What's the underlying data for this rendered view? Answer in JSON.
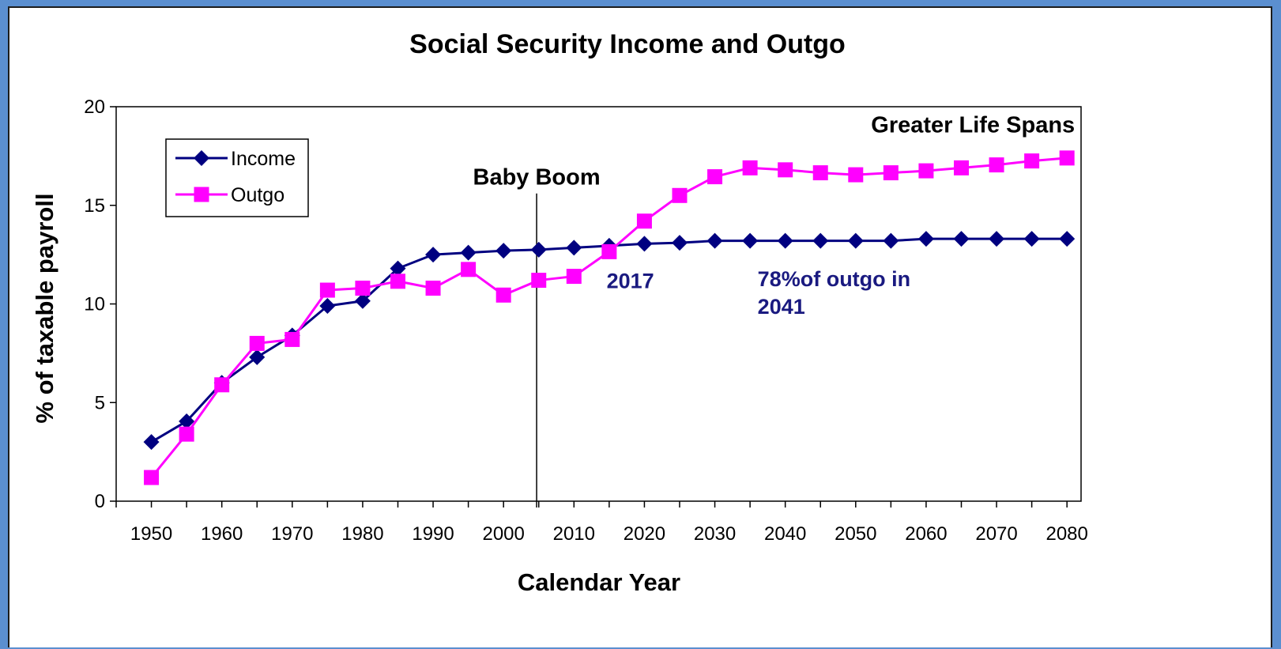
{
  "chart_data": {
    "type": "line",
    "title": "Social Security Income and Outgo",
    "xlabel": "Calendar Year",
    "ylabel": "% of taxable payroll",
    "xlim": [
      1945,
      2082
    ],
    "ylim": [
      0,
      20
    ],
    "x_ticks": [
      1950,
      1960,
      1970,
      1980,
      1990,
      2000,
      2010,
      2020,
      2030,
      2040,
      2050,
      2060,
      2070,
      2080
    ],
    "y_ticks": [
      0,
      5,
      10,
      15,
      20
    ],
    "grid": false,
    "legend_position": "upper-left",
    "series": [
      {
        "name": "Income",
        "color": "#000080",
        "marker": "diamond",
        "x": [
          1950,
          1955,
          1960,
          1965,
          1970,
          1975,
          1980,
          1985,
          1990,
          1995,
          2000,
          2005,
          2010,
          2015,
          2020,
          2025,
          2030,
          2035,
          2040,
          2045,
          2050,
          2055,
          2060,
          2065,
          2070,
          2075,
          2080
        ],
        "values": [
          3.0,
          4.05,
          6.0,
          7.3,
          8.4,
          9.9,
          10.15,
          11.8,
          12.5,
          12.6,
          12.7,
          12.75,
          12.85,
          12.95,
          13.05,
          13.1,
          13.2,
          13.2,
          13.2,
          13.2,
          13.2,
          13.2,
          13.3,
          13.3,
          13.3,
          13.3,
          13.3
        ]
      },
      {
        "name": "Outgo",
        "color": "#ff00ff",
        "marker": "square",
        "x": [
          1950,
          1955,
          1960,
          1965,
          1970,
          1975,
          1980,
          1985,
          1990,
          1995,
          2000,
          2005,
          2010,
          2015,
          2020,
          2025,
          2030,
          2035,
          2040,
          2045,
          2050,
          2055,
          2060,
          2065,
          2070,
          2075,
          2080
        ],
        "values": [
          1.2,
          3.4,
          5.9,
          8.0,
          8.2,
          10.7,
          10.8,
          11.15,
          10.8,
          11.75,
          10.45,
          11.2,
          11.4,
          12.65,
          14.2,
          15.5,
          16.45,
          16.9,
          16.8,
          16.65,
          16.55,
          16.65,
          16.75,
          16.9,
          17.05,
          17.25,
          17.4
        ]
      }
    ],
    "annotations": [
      {
        "text": "Baby Boom",
        "x": 2004.7,
        "y": 16.5
      },
      {
        "text": "Greater Life Spans",
        "x": 2080,
        "y": 19.1
      },
      {
        "text": "2017",
        "x": 2018,
        "y": 11.2
      },
      {
        "text": "78%of outgo in",
        "x": 2040,
        "y": 11.3
      },
      {
        "text": "2041",
        "x": 2040,
        "y": 9.9
      }
    ],
    "vertical_line": {
      "x": 2004.7,
      "y_top": 15.6
    }
  }
}
